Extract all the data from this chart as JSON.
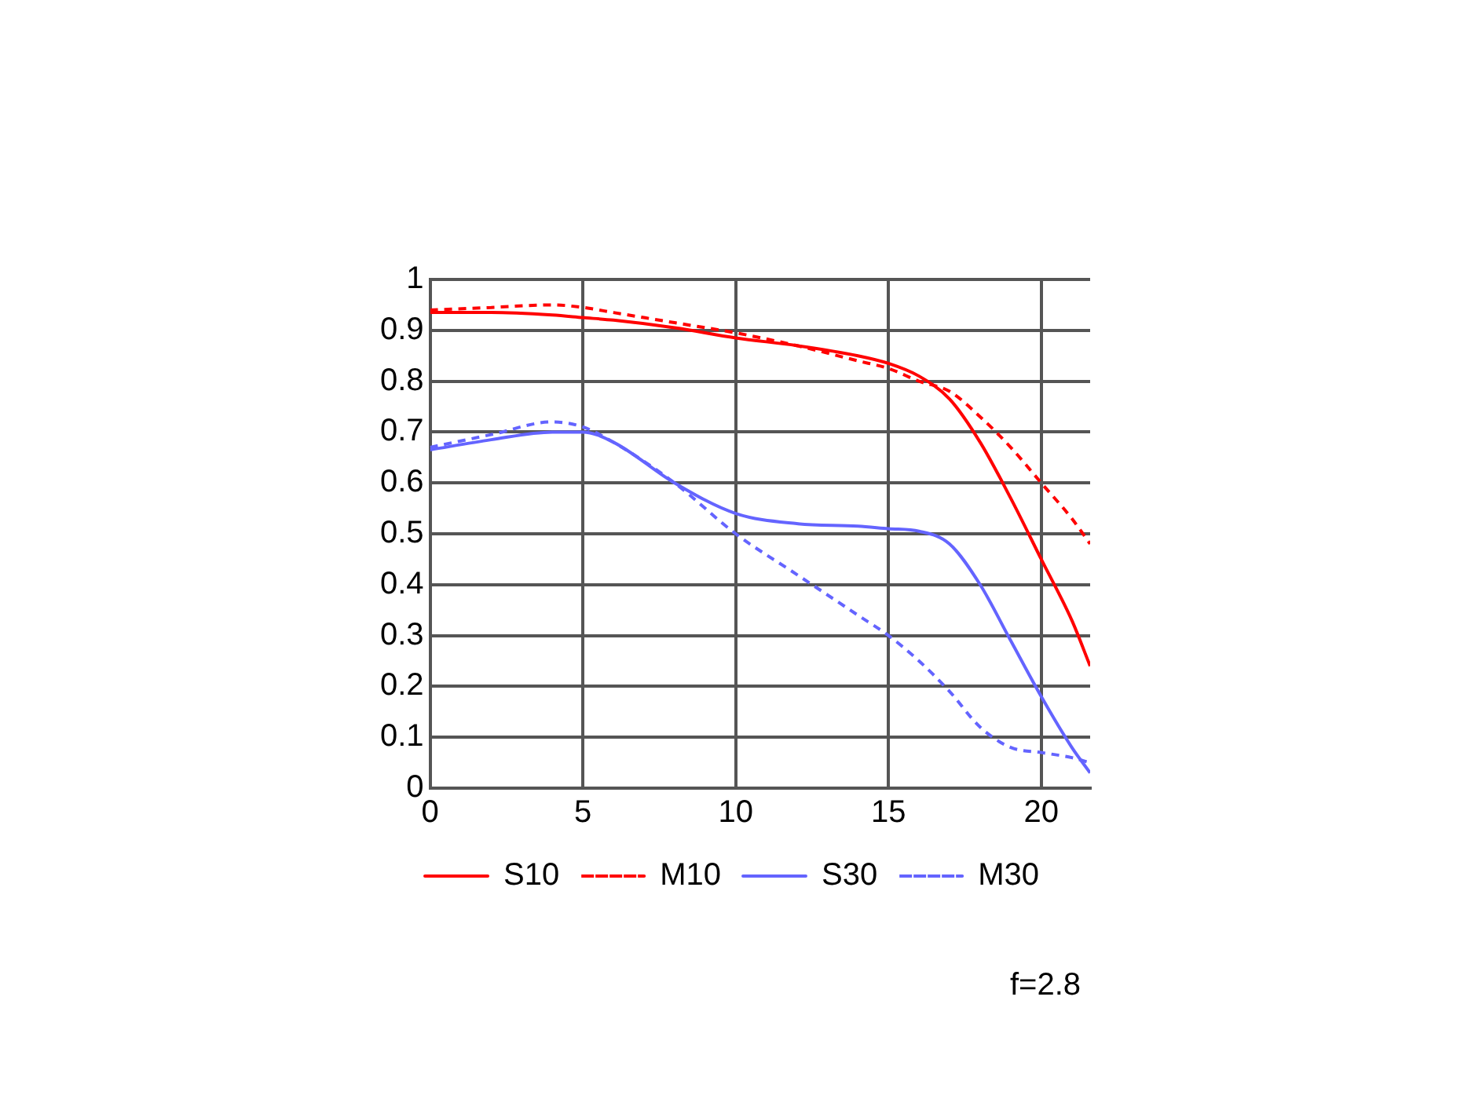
{
  "chart_data": {
    "type": "line",
    "x": [
      0,
      2,
      4,
      5,
      6,
      8,
      10,
      12,
      14,
      15,
      16,
      17,
      18,
      19,
      20,
      21,
      21.6
    ],
    "series": [
      {
        "name": "S10",
        "color": "#ff0000",
        "line_style": "solid",
        "values": [
          0.935,
          0.935,
          0.93,
          0.925,
          0.92,
          0.905,
          0.885,
          0.87,
          0.85,
          0.835,
          0.81,
          0.765,
          0.68,
          0.57,
          0.45,
          0.33,
          0.24
        ]
      },
      {
        "name": "M10",
        "color": "#ff0000",
        "line_style": "dashed",
        "values": [
          0.94,
          0.945,
          0.95,
          0.945,
          0.935,
          0.915,
          0.895,
          0.87,
          0.84,
          0.825,
          0.8,
          0.78,
          0.73,
          0.67,
          0.6,
          0.53,
          0.48
        ]
      },
      {
        "name": "S30",
        "color": "#6464ff",
        "line_style": "solid",
        "values": [
          0.665,
          0.685,
          0.7,
          0.7,
          0.68,
          0.6,
          0.54,
          0.52,
          0.515,
          0.51,
          0.505,
          0.48,
          0.4,
          0.29,
          0.18,
          0.08,
          0.03
        ]
      },
      {
        "name": "M30",
        "color": "#6464ff",
        "line_style": "dashed",
        "values": [
          0.67,
          0.695,
          0.72,
          0.71,
          0.68,
          0.6,
          0.5,
          0.42,
          0.34,
          0.3,
          0.25,
          0.19,
          0.12,
          0.08,
          0.07,
          0.06,
          0.05
        ]
      }
    ],
    "xlim": [
      0,
      21.6
    ],
    "xticks": [
      0,
      5,
      10,
      15,
      20
    ],
    "ylim": [
      0,
      1
    ],
    "yticks": [
      0,
      0.1,
      0.2,
      0.3,
      0.4,
      0.5,
      0.6,
      0.7,
      0.8,
      0.9,
      1
    ],
    "grid": true,
    "legend": "bottom",
    "marker": "none",
    "annotations": [
      "f=2.8"
    ]
  }
}
